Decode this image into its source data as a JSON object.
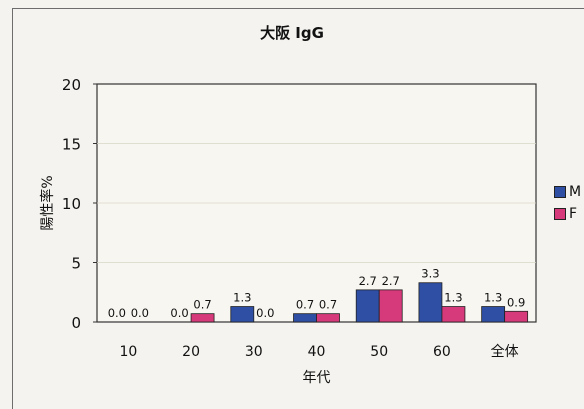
{
  "chart_data": {
    "type": "bar",
    "title": "大阪 IgG",
    "xlabel": "年代",
    "ylabel": "陽性率%",
    "categories": [
      "10",
      "20",
      "30",
      "40",
      "50",
      "60",
      "全体"
    ],
    "ylim": [
      0,
      20
    ],
    "yticks": [
      "0",
      "5",
      "10",
      "15",
      "20"
    ],
    "series": [
      {
        "name": "M",
        "color": "#2e4fa3",
        "values": [
          0.0,
          0.0,
          1.3,
          0.7,
          2.7,
          3.3,
          1.3
        ],
        "labels": [
          "0.0",
          "0.0",
          "1.3",
          "0.7",
          "2.7",
          "3.3",
          "1.3"
        ]
      },
      {
        "name": "F",
        "color": "#d63a7a",
        "values": [
          0.0,
          0.7,
          0.0,
          0.7,
          2.7,
          1.3,
          0.9
        ],
        "labels": [
          "0.0",
          "0.7",
          "0.0",
          "0.7",
          "2.7",
          "1.3",
          "0.9"
        ]
      }
    ],
    "grid": true,
    "legend_position": "right"
  }
}
